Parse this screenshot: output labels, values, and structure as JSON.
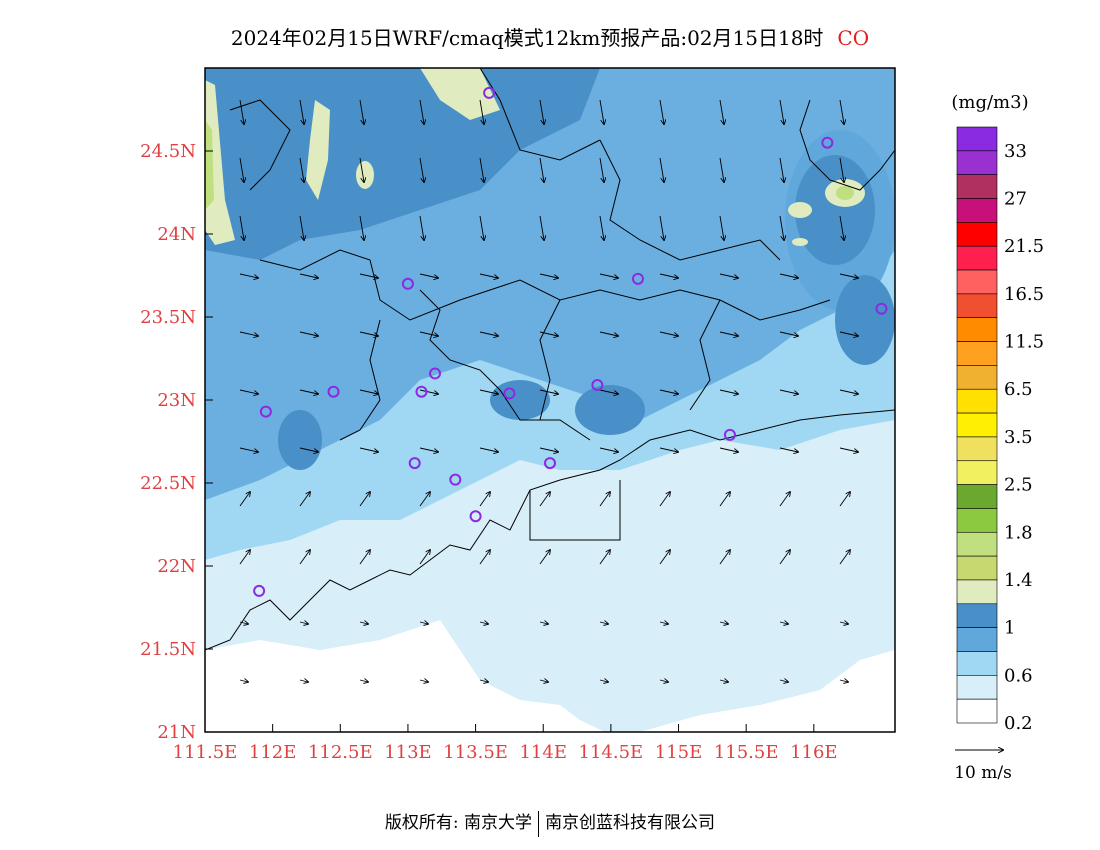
{
  "title": {
    "main": "2024年02月15日WRF/cmaq模式12km预报产品:02月15日18时",
    "species": "CO"
  },
  "axes": {
    "x_ticks": [
      "111.5E",
      "112E",
      "112.5E",
      "113E",
      "113.5E",
      "114E",
      "114.5E",
      "115E",
      "115.5E",
      "116E"
    ],
    "y_ticks": [
      "21N",
      "21.5N",
      "22N",
      "22.5N",
      "23N",
      "23.5N",
      "24N",
      "24.5N"
    ],
    "tick_color": "#e04040"
  },
  "legend": {
    "unit": "(mg/m3)",
    "labels": [
      "33",
      "27",
      "21.5",
      "16.5",
      "11.5",
      "6.5",
      "3.5",
      "2.5",
      "1.8",
      "1.4",
      "1",
      "0.6",
      "0.2"
    ],
    "colors": [
      "#8a2be2",
      "#9b30d0",
      "#b03060",
      "#c8107a",
      "#ff0000",
      "#ff2050",
      "#ff6060",
      "#f05030",
      "#ff8c00",
      "#ffa020",
      "#f0b030",
      "#ffe000",
      "#ffef00",
      "#f0e060",
      "#f0f060",
      "#6aa830",
      "#8cc840",
      "#c0e080",
      "#c8d870",
      "#e0ecc0",
      "#4a90c8",
      "#60a8dc",
      "#a0d8f4",
      "#d8eef8",
      "#ffffff"
    ]
  },
  "wind_scale": {
    "label": "10 m/s"
  },
  "footer": {
    "left": "版权所有: 南京大学",
    "right": "南京创蓝科技有限公司"
  },
  "map": {
    "lon_range": [
      111.5,
      116.6
    ],
    "lat_range": [
      21.0,
      25.0
    ],
    "stations": [
      {
        "lon": 113.6,
        "lat": 24.85
      },
      {
        "lon": 116.1,
        "lat": 24.55
      },
      {
        "lon": 113.0,
        "lat": 23.7
      },
      {
        "lon": 114.7,
        "lat": 23.73
      },
      {
        "lon": 116.5,
        "lat": 23.55
      },
      {
        "lon": 112.45,
        "lat": 23.05
      },
      {
        "lon": 113.1,
        "lat": 23.05
      },
      {
        "lon": 113.2,
        "lat": 23.16
      },
      {
        "lon": 113.75,
        "lat": 23.04
      },
      {
        "lon": 114.4,
        "lat": 23.09
      },
      {
        "lon": 111.95,
        "lat": 22.93
      },
      {
        "lon": 115.38,
        "lat": 22.79
      },
      {
        "lon": 113.05,
        "lat": 22.62
      },
      {
        "lon": 113.35,
        "lat": 22.52
      },
      {
        "lon": 114.05,
        "lat": 22.62
      },
      {
        "lon": 113.5,
        "lat": 22.3
      },
      {
        "lon": 111.9,
        "lat": 21.85
      }
    ]
  }
}
